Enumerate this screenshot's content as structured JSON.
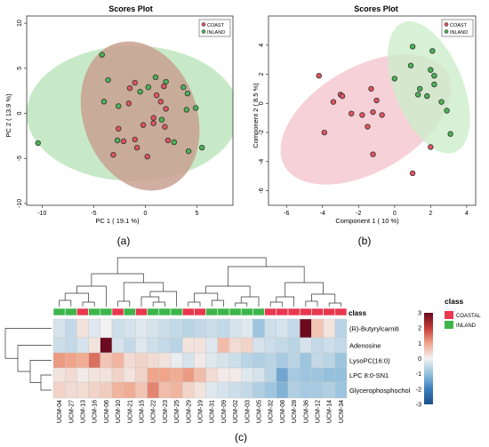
{
  "chart_data": [
    {
      "type": "scatter",
      "panel_label": "(a)",
      "title": "Scores Plot",
      "xlabel": "PC 1 ( 19.1 %)",
      "ylabel": "PC 2 ( 13.9 %)",
      "xlim": [
        -11.5,
        8.5
      ],
      "ylim": [
        -10.2,
        10.8
      ],
      "xticks": [
        -10,
        -5,
        0,
        5
      ],
      "yticks": [
        -10,
        -5,
        0,
        5,
        10
      ],
      "legend_position": "top-right",
      "series": [
        {
          "name": "COAST",
          "color": "#e0545f",
          "ellipse": {
            "cx": -0.5,
            "cy": -0.3,
            "rx": 5.5,
            "ry": 8.5,
            "angle_deg": -20,
            "fill": "#c8a090"
          },
          "points": [
            [
              -1.5,
              2.8
            ],
            [
              -1.0,
              3.4
            ],
            [
              1.8,
              3.0
            ],
            [
              1.1,
              2.0
            ],
            [
              -1.6,
              1.1
            ],
            [
              1.5,
              1.3
            ],
            [
              0.8,
              -0.5
            ],
            [
              2.0,
              0.5
            ],
            [
              -2.6,
              -1.7
            ],
            [
              -0.2,
              -1.3
            ],
            [
              0.8,
              -1.1
            ],
            [
              1.9,
              -1.5
            ],
            [
              -1.0,
              -2.9
            ],
            [
              -2.1,
              -3.1
            ],
            [
              -0.8,
              -3.8
            ],
            [
              2.2,
              -3.0
            ],
            [
              -3.1,
              -4.6
            ],
            [
              0.2,
              -4.8
            ]
          ]
        },
        {
          "name": "INLAND",
          "color": "#4cb356",
          "ellipse": {
            "cx": -1.2,
            "cy": 0.0,
            "rx": 10.3,
            "ry": 7.5,
            "angle_deg": 0,
            "fill": "#b9e3b9"
          },
          "points": [
            [
              -4.2,
              6.5
            ],
            [
              -3.6,
              3.7
            ],
            [
              -0.5,
              2.4
            ],
            [
              0.3,
              2.9
            ],
            [
              2.0,
              3.5
            ],
            [
              1.0,
              4.0
            ],
            [
              3.7,
              2.9
            ],
            [
              4.1,
              2.2
            ],
            [
              -4.0,
              1.3
            ],
            [
              -2.6,
              0.8
            ],
            [
              1.6,
              -0.7
            ],
            [
              4.0,
              0.4
            ],
            [
              4.9,
              0.6
            ],
            [
              -10.4,
              -3.3
            ],
            [
              -2.7,
              -3.0
            ],
            [
              2.8,
              -3.2
            ],
            [
              4.2,
              -4.2
            ],
            [
              5.5,
              -3.8
            ]
          ]
        }
      ]
    },
    {
      "type": "scatter",
      "panel_label": "(b)",
      "title": "Scores Plot",
      "xlabel": "Component 1 ( 10 %)",
      "ylabel": "Component 2 ( 8.5 %)",
      "xlim": [
        -7,
        4.5
      ],
      "ylim": [
        -7,
        6
      ],
      "xticks": [
        -6,
        -4,
        -2,
        0,
        2,
        4
      ],
      "yticks": [
        -6,
        -4,
        -2,
        0,
        2,
        4
      ],
      "legend_position": "top-right",
      "series": [
        {
          "name": "COAST",
          "color": "#e0545f",
          "ellipse": {
            "cx": -1.6,
            "cy": -1.1,
            "rx": 5.2,
            "ry": 3.6,
            "angle_deg": -30,
            "fill": "#f4c6cd"
          },
          "points": [
            [
              -4.2,
              1.9
            ],
            [
              -3.0,
              0.6
            ],
            [
              -2.9,
              0.5
            ],
            [
              -3.4,
              0.1
            ],
            [
              -1.3,
              1.0
            ],
            [
              -1.0,
              0.2
            ],
            [
              -1.2,
              -0.6
            ],
            [
              -2.4,
              -0.7
            ],
            [
              -1.8,
              -0.8
            ],
            [
              -0.7,
              -0.8
            ],
            [
              -3.9,
              -2.0
            ],
            [
              -1.5,
              -1.6
            ],
            [
              2.0,
              -3.0
            ],
            [
              -1.2,
              -3.5
            ],
            [
              1.0,
              -4.8
            ]
          ]
        },
        {
          "name": "INLAND",
          "color": "#4cb356",
          "ellipse": {
            "cx": 1.9,
            "cy": 1.1,
            "rx": 1.9,
            "ry": 4.8,
            "angle_deg": -22,
            "fill": "#cdeecc"
          },
          "points": [
            [
              1.0,
              3.9
            ],
            [
              2.1,
              3.6
            ],
            [
              0.9,
              2.6
            ],
            [
              2.0,
              2.3
            ],
            [
              0.0,
              1.7
            ],
            [
              2.2,
              1.9
            ],
            [
              1.4,
              1.0
            ],
            [
              2.2,
              1.3
            ],
            [
              1.3,
              0.6
            ],
            [
              1.8,
              0.5
            ],
            [
              2.6,
              0.1
            ],
            [
              2.9,
              -0.5
            ],
            [
              3.1,
              -2.1
            ]
          ]
        }
      ]
    },
    {
      "type": "heatmap",
      "panel_label": "(c)",
      "title": "",
      "class_row_label": "class",
      "columns": [
        "UCM-04",
        "UCM-27",
        "UCM-13",
        "UCM-16",
        "UCM-06",
        "UCM-10",
        "UCM-21",
        "UCM-15",
        "UCM-22",
        "UCM-23",
        "UCM-25",
        "UCM-29",
        "UCM-19",
        "UCM-31",
        "UCM-09",
        "UCM-02",
        "UCM-03",
        "UCM-05",
        "UCM-32",
        "UCM-08",
        "UCM-28",
        "UCM-36",
        "UCM-12",
        "UCM-14",
        "UCM-34"
      ],
      "column_class": [
        "INLAND",
        "INLAND",
        "COASTAL",
        "INLAND",
        "INLAND",
        "COASTAL",
        "INLAND",
        "COASTAL",
        "INLAND",
        "INLAND",
        "INLAND",
        "COASTAL",
        "COASTAL",
        "INLAND",
        "INLAND",
        "INLAND",
        "INLAND",
        "INLAND",
        "COASTAL",
        "COASTAL",
        "COASTAL",
        "COASTAL",
        "COASTAL",
        "COASTAL",
        "COASTAL"
      ],
      "rows": [
        "(R)-Butyrylcarniti",
        "Adenosine",
        "LysoPC(16:0)",
        "LPC 8:0-SN1",
        "Glycerophosphochol"
      ],
      "values": [
        [
          -0.3,
          -0.5,
          0.2,
          -0.2,
          0.0,
          -0.4,
          -0.3,
          -0.2,
          -0.3,
          -0.4,
          -0.5,
          -0.6,
          -0.5,
          -0.4,
          -0.5,
          -0.3,
          -0.2,
          -0.9,
          -0.4,
          -0.3,
          -0.5,
          3.0,
          0.6,
          0.2,
          -0.6
        ],
        [
          -0.4,
          -0.5,
          -0.3,
          0.2,
          3.0,
          -0.3,
          -0.5,
          -0.2,
          -0.4,
          -0.5,
          -0.6,
          0.2,
          0.2,
          -0.2,
          0.7,
          0.3,
          0.4,
          -0.3,
          -0.4,
          -0.5,
          -0.6,
          -0.3,
          -0.5,
          -0.4,
          -0.5
        ],
        [
          1.1,
          1.0,
          0.9,
          1.5,
          0.6,
          0.8,
          0.3,
          0.4,
          0.3,
          0.2,
          -0.1,
          -0.3,
          0.1,
          -0.2,
          -0.3,
          -0.4,
          -0.6,
          -0.7,
          -0.6,
          -0.8,
          -0.6,
          -0.9,
          -0.5,
          -0.6,
          -0.9
        ],
        [
          0.2,
          0.3,
          0.1,
          0.2,
          0.2,
          0.4,
          0.2,
          0.4,
          1.0,
          1.0,
          0.9,
          1.1,
          0.7,
          0.3,
          0.1,
          0.1,
          -0.2,
          -0.3,
          -0.6,
          -1.4,
          -0.8,
          -0.9,
          -0.9,
          -1.0,
          -1.0
        ],
        [
          0.4,
          0.3,
          0.3,
          0.4,
          0.5,
          0.8,
          0.9,
          0.6,
          1.3,
          0.7,
          0.8,
          0.4,
          0.2,
          -0.2,
          -0.3,
          -0.4,
          -0.5,
          -0.7,
          -0.9,
          -1.2,
          -0.7,
          -0.8,
          -0.8,
          -0.7,
          -0.9
        ]
      ],
      "color_scale": {
        "min": -3,
        "max": 3,
        "ticks": [
          3,
          2,
          1,
          0,
          -1,
          -2,
          -3
        ],
        "low": "#2166ac",
        "mid": "#f7f7f7",
        "high": "#67001f"
      },
      "legend": {
        "title": "class",
        "entries": [
          {
            "label": "COASTAL",
            "color": "#e8384f"
          },
          {
            "label": "INLAND",
            "color": "#3db54a"
          }
        ]
      }
    }
  ]
}
